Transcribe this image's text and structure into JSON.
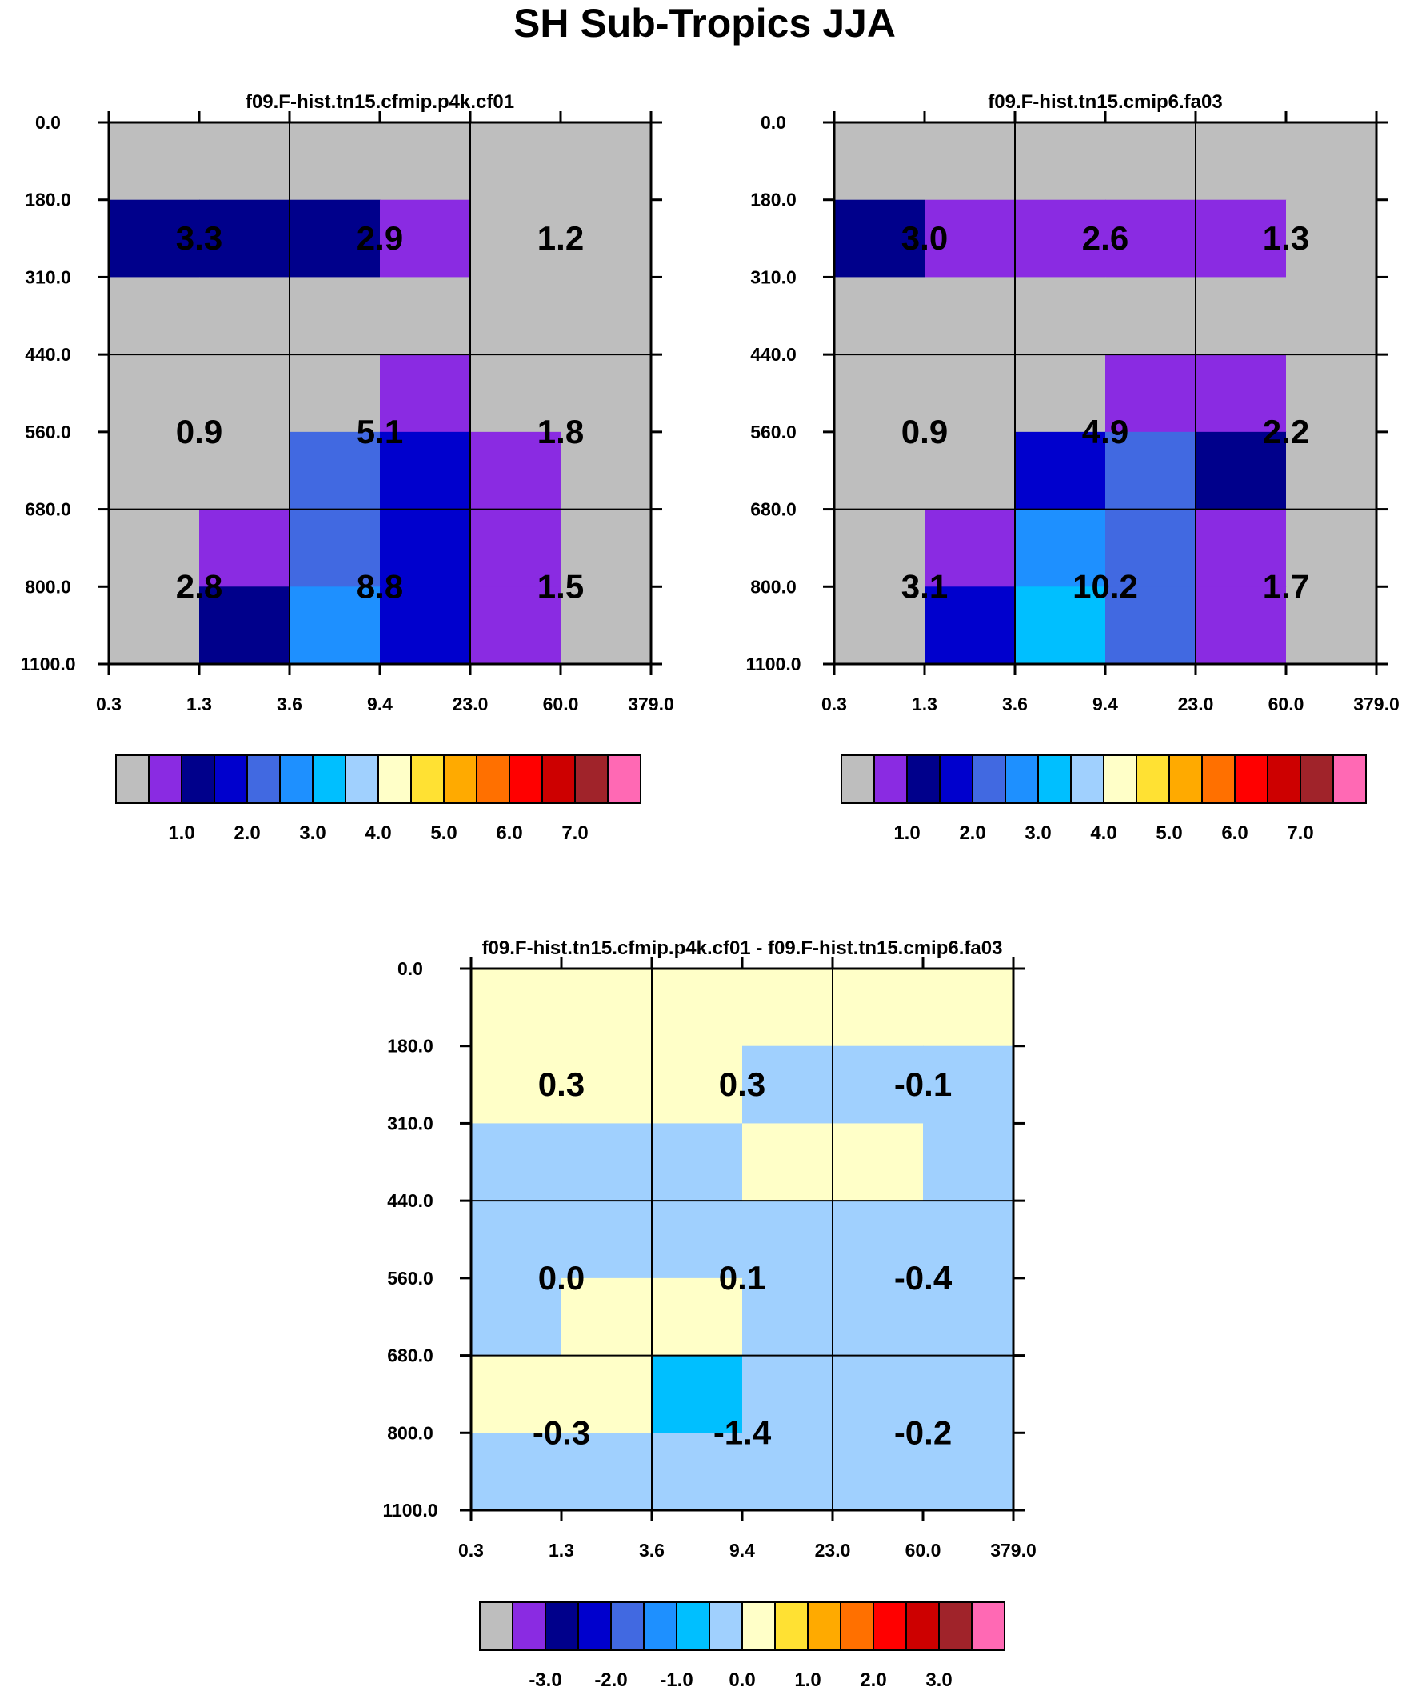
{
  "figure": {
    "title": "SH Sub-Tropics JJA",
    "gray_color": "#bebebe"
  },
  "chart_data": [
    {
      "type": "heatmap",
      "id": "panel-1",
      "title": "f09.F-hist.tn15.cfmip.p4k.cf01",
      "x_tick_labels": [
        "0.3",
        "1.3",
        "3.6",
        "9.4",
        "23.0",
        "60.0",
        "379.0"
      ],
      "y_tick_labels": [
        "0.0",
        "180.0",
        "310.0",
        "440.0",
        "560.0",
        "680.0",
        "800.0",
        "1100.0"
      ],
      "cell_colors": [
        [
          "gray",
          "gray",
          "gray",
          "gray",
          "gray",
          "gray"
        ],
        [
          "navy",
          "navy",
          "navy",
          "purple",
          "gray",
          "gray"
        ],
        [
          "gray",
          "gray",
          "gray",
          "gray",
          "gray",
          "gray"
        ],
        [
          "gray",
          "gray",
          "gray",
          "purple",
          "gray",
          "gray"
        ],
        [
          "gray",
          "gray",
          "royal",
          "blue",
          "purple",
          "gray"
        ],
        [
          "gray",
          "purple",
          "royal",
          "blue",
          "purple",
          "gray"
        ],
        [
          "gray",
          "navy",
          "dodger",
          "blue",
          "purple",
          "gray"
        ]
      ],
      "region_values": [
        [
          "3.3",
          "2.9",
          "1.2"
        ],
        [
          "0.9",
          "5.1",
          "1.8"
        ],
        [
          "2.8",
          "8.8",
          "1.5"
        ]
      ],
      "colorbar": {
        "colors": [
          "gray",
          "purple",
          "navy",
          "blue",
          "royal",
          "dodger",
          "sky",
          "light",
          "cream",
          "yellow",
          "orange",
          "darkorange",
          "red",
          "crimson",
          "brown",
          "pink"
        ],
        "labels": [
          "1.0",
          "2.0",
          "3.0",
          "4.0",
          "5.0",
          "6.0",
          "7.0"
        ]
      }
    },
    {
      "type": "heatmap",
      "id": "panel-2",
      "title": "f09.F-hist.tn15.cmip6.fa03",
      "x_tick_labels": [
        "0.3",
        "1.3",
        "3.6",
        "9.4",
        "23.0",
        "60.0",
        "379.0"
      ],
      "y_tick_labels": [
        "0.0",
        "180.0",
        "310.0",
        "440.0",
        "560.0",
        "680.0",
        "800.0",
        "1100.0"
      ],
      "cell_colors": [
        [
          "gray",
          "gray",
          "gray",
          "gray",
          "gray",
          "gray"
        ],
        [
          "navy",
          "purple",
          "purple",
          "purple",
          "purple",
          "gray"
        ],
        [
          "gray",
          "gray",
          "gray",
          "gray",
          "gray",
          "gray"
        ],
        [
          "gray",
          "gray",
          "gray",
          "purple",
          "purple",
          "gray"
        ],
        [
          "gray",
          "gray",
          "blue",
          "royal",
          "navy",
          "gray"
        ],
        [
          "gray",
          "purple",
          "dodger",
          "royal",
          "purple",
          "gray"
        ],
        [
          "gray",
          "blue",
          "sky",
          "royal",
          "purple",
          "gray"
        ]
      ],
      "region_values": [
        [
          "3.0",
          "2.6",
          "1.3"
        ],
        [
          "0.9",
          "4.9",
          "2.2"
        ],
        [
          "3.1",
          "10.2",
          "1.7"
        ]
      ],
      "colorbar": {
        "colors": [
          "gray",
          "purple",
          "navy",
          "blue",
          "royal",
          "dodger",
          "sky",
          "light",
          "cream",
          "yellow",
          "orange",
          "darkorange",
          "red",
          "crimson",
          "brown",
          "pink"
        ],
        "labels": [
          "1.0",
          "2.0",
          "3.0",
          "4.0",
          "5.0",
          "6.0",
          "7.0"
        ]
      }
    },
    {
      "type": "heatmap",
      "id": "panel-diff",
      "title": "f09.F-hist.tn15.cfmip.p4k.cf01 - f09.F-hist.tn15.cmip6.fa03",
      "x_tick_labels": [
        "0.3",
        "1.3",
        "3.6",
        "9.4",
        "23.0",
        "60.0",
        "379.0"
      ],
      "y_tick_labels": [
        "0.0",
        "180.0",
        "310.0",
        "440.0",
        "560.0",
        "680.0",
        "800.0",
        "1100.0"
      ],
      "cell_colors": [
        [
          "cream",
          "cream",
          "cream",
          "cream",
          "cream",
          "cream"
        ],
        [
          "cream",
          "cream",
          "cream",
          "light",
          "light",
          "light"
        ],
        [
          "light",
          "light",
          "light",
          "cream",
          "cream",
          "light"
        ],
        [
          "light",
          "light",
          "light",
          "light",
          "light",
          "light"
        ],
        [
          "light",
          "cream",
          "cream",
          "light",
          "light",
          "light"
        ],
        [
          "cream",
          "cream",
          "sky",
          "light",
          "light",
          "light"
        ],
        [
          "light",
          "light",
          "light",
          "light",
          "light",
          "light"
        ]
      ],
      "region_values": [
        [
          "0.3",
          "0.3",
          "-0.1"
        ],
        [
          "0.0",
          "0.1",
          "-0.4"
        ],
        [
          "-0.3",
          "-1.4",
          "-0.2"
        ]
      ],
      "colorbar": {
        "colors": [
          "gray",
          "purple",
          "navy",
          "blue",
          "royal",
          "dodger",
          "sky",
          "light",
          "cream",
          "yellow",
          "orange",
          "darkorange",
          "red",
          "crimson",
          "brown",
          "pink"
        ],
        "labels": [
          "-3.0",
          "-2.0",
          "-1.0",
          "0.0",
          "1.0",
          "2.0",
          "3.0"
        ]
      }
    }
  ],
  "palette": {
    "gray": "#bebebe",
    "purple": "#8a2be2",
    "navy": "#00008b",
    "blue": "#0000cd",
    "royal": "#4169e1",
    "dodger": "#1e90ff",
    "sky": "#00bfff",
    "light": "#a0d0fe",
    "cream": "#ffffc8",
    "yellow": "#ffe133",
    "orange": "#ffaa00",
    "darkorange": "#ff7000",
    "red": "#ff0000",
    "crimson": "#cd0000",
    "brown": "#a0232a",
    "pink": "#ff69b4"
  }
}
